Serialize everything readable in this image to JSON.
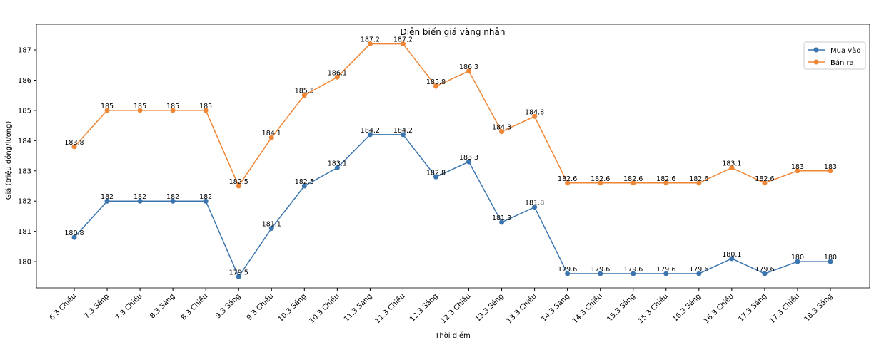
{
  "chart_data": {
    "type": "line",
    "title": "Diễn biến giá vàng nhẫn",
    "xlabel": "Thời điểm",
    "ylabel": "Giá (triệu đồng/lượng)",
    "ylim": [
      179.13,
      187.85
    ],
    "yticks": [
      180,
      181,
      182,
      183,
      184,
      185,
      186,
      187
    ],
    "grid": false,
    "legend_position": "top-right",
    "categories": [
      "6.3 Chiều",
      "7.3 Sáng",
      "7.3 Chiều",
      "8.3 Sáng",
      "8.3 Chiều",
      "9.3 Sáng",
      "9.3 Chiều",
      "10.3 Sáng",
      "10.3 Chiều",
      "11.3 Sáng",
      "11.3 Chiều",
      "12.3 Sáng",
      "12.3 Chiều",
      "13.3 Sáng",
      "13.3 Chiều",
      "14.3 Sáng",
      "14.3 Chiều",
      "15.3 Sáng",
      "15.3 Chiều",
      "16.3 Sáng",
      "16.3 Chiều",
      "17.3 Sáng",
      "17.3 Chiều",
      "18.3 Sáng"
    ],
    "series": [
      {
        "name": "Mua vào",
        "color": "#3b75af",
        "values": [
          180.8,
          182,
          182,
          182,
          182,
          179.5,
          181.1,
          182.5,
          183.1,
          184.2,
          184.2,
          182.8,
          183.3,
          181.3,
          181.8,
          179.6,
          179.6,
          179.6,
          179.6,
          179.6,
          180.1,
          179.6,
          180,
          180
        ]
      },
      {
        "name": "Bán ra",
        "color": "#ef8636",
        "values": [
          183.8,
          185,
          185,
          185,
          185,
          182.5,
          184.1,
          185.5,
          186.1,
          187.2,
          187.2,
          185.8,
          186.3,
          184.3,
          184.8,
          182.6,
          182.6,
          182.6,
          182.6,
          182.6,
          183.1,
          182.6,
          183,
          183
        ]
      }
    ]
  }
}
